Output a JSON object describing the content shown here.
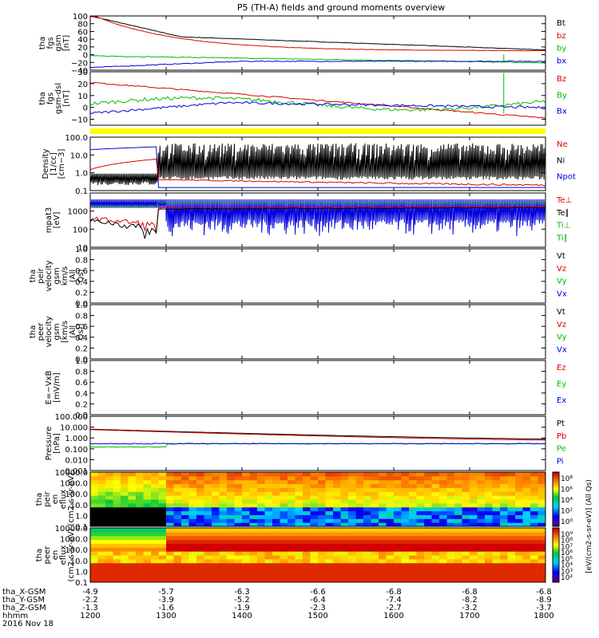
{
  "title": "P5 (TH-A) fields and ground moments overview",
  "colors": {
    "black": "#000000",
    "red": "#dd0000",
    "green": "#00bb00",
    "blue": "#0000dd",
    "yellow": "#ffff00"
  },
  "time_axis": {
    "range": [
      1200,
      1800
    ],
    "hhmm_labels": [
      "1200",
      "1300",
      "1400",
      "1500",
      "1600",
      "1700",
      "1800"
    ],
    "date": "2016 Nov 18",
    "rows": [
      {
        "name": "tha_X-GSM",
        "values": [
          "-4.9",
          "-5.7",
          "-6.3",
          "-6.6",
          "-6.8",
          "-6.8",
          "-6.8"
        ]
      },
      {
        "name": "tha_Y-GSM",
        "values": [
          "-2.2",
          "-3.9",
          "-5.2",
          "-6.4",
          "-7.4",
          "-8.2",
          "-8.9"
        ]
      },
      {
        "name": "tha_Z-GSM",
        "values": [
          "-1.3",
          "-1.6",
          "-1.9",
          "-2.3",
          "-2.7",
          "-3.2",
          "-3.7"
        ]
      },
      {
        "name": "hhmm",
        "values": []
      }
    ]
  },
  "colorbar_label": "[eV/(cm2-s-sr-eV)] (All Qs)",
  "chart_data": [
    {
      "type": "line",
      "id": "fgs_gsm",
      "ylabel": "tha fgs gsm [nT]",
      "ylim": [
        -40,
        100
      ],
      "ticks": [
        "100",
        "80",
        "60",
        "40",
        "20",
        "0",
        "−20",
        "−40"
      ],
      "tick_values": [
        100,
        80,
        60,
        40,
        20,
        0,
        -20,
        -40
      ],
      "legend": [
        {
          "name": "Bt",
          "color": "black"
        },
        {
          "name": "bz",
          "color": "red"
        },
        {
          "name": "by",
          "color": "green"
        },
        {
          "name": "bx",
          "color": "blue"
        }
      ]
    },
    {
      "type": "line",
      "id": "fgs_dsl",
      "ylabel": "tha fgs gsm-dsl [nT]",
      "ylim": [
        -15,
        30
      ],
      "ticks": [
        "30",
        "20",
        "10",
        "0",
        "−10"
      ],
      "tick_values": [
        30,
        20,
        10,
        0,
        -10
      ],
      "legend": [
        {
          "name": "Bz",
          "color": "red"
        },
        {
          "name": "By",
          "color": "green"
        },
        {
          "name": "Bx",
          "color": "blue"
        }
      ]
    },
    {
      "type": "line",
      "id": "density",
      "ylabel": "Density [1/cc] [cm−3]",
      "ylim": [
        0.1,
        100
      ],
      "log": true,
      "ticks": [
        "100.0",
        "10.0",
        "1.0",
        "0.1"
      ],
      "tick_values": [
        100,
        10,
        1,
        0.1
      ],
      "legend": [
        {
          "name": "Ne",
          "color": "red"
        },
        {
          "name": "Ni",
          "color": "black"
        },
        {
          "name": "Npot",
          "color": "blue"
        }
      ]
    },
    {
      "type": "line",
      "id": "temperature",
      "ylabel": "mpat3 [eV]",
      "ylim": [
        10,
        10000
      ],
      "log": true,
      "ticks": [
        "1000",
        "100",
        "10"
      ],
      "tick_values": [
        1000,
        100,
        10
      ],
      "legend": [
        {
          "name": "Te⊥",
          "color": "red"
        },
        {
          "name": "Te∥",
          "color": "black"
        },
        {
          "name": "Ti⊥",
          "color": "green"
        },
        {
          "name": "Ti∥",
          "color": "green"
        }
      ]
    },
    {
      "type": "line",
      "id": "peir_velocity",
      "ylabel": "tha peir velocity gsm km/s (All Qs)",
      "ylim": [
        0,
        1
      ],
      "ticks": [
        "1.0",
        "0.8",
        "0.6",
        "0.4",
        "0.2",
        "0.0"
      ],
      "tick_values": [
        1,
        0.8,
        0.6,
        0.4,
        0.2,
        0
      ],
      "legend": [
        {
          "name": "Vt",
          "color": "black"
        },
        {
          "name": "Vz",
          "color": "red"
        },
        {
          "name": "Vy",
          "color": "green"
        },
        {
          "name": "Vx",
          "color": "blue"
        }
      ]
    },
    {
      "type": "line",
      "id": "peer_velocity",
      "ylabel": "tha peer velocity gsm [km/s (All Qs)]",
      "ylim": [
        0,
        1
      ],
      "ticks": [
        "1.0",
        "0.8",
        "0.6",
        "0.4",
        "0.2",
        "0.0"
      ],
      "tick_values": [
        1,
        0.8,
        0.6,
        0.4,
        0.2,
        0
      ],
      "legend": [
        {
          "name": "Vt",
          "color": "black"
        },
        {
          "name": "Vz",
          "color": "red"
        },
        {
          "name": "Vy",
          "color": "green"
        },
        {
          "name": "Vx",
          "color": "blue"
        }
      ]
    },
    {
      "type": "line",
      "id": "efield",
      "ylabel": "E=−VxB [mV/m]",
      "ylim": [
        0,
        1
      ],
      "ticks": [
        "1.0",
        "0.8",
        "0.6",
        "0.4",
        "0.2",
        "0.0"
      ],
      "tick_values": [
        1,
        0.8,
        0.6,
        0.4,
        0.2,
        0
      ],
      "legend": [
        {
          "name": "Ez",
          "color": "red"
        },
        {
          "name": "Ey",
          "color": "green"
        },
        {
          "name": "Ex",
          "color": "blue"
        }
      ]
    },
    {
      "type": "line",
      "id": "pressure",
      "ylabel": "Pressure [nPa]",
      "ylim": [
        0.001,
        100
      ],
      "log": true,
      "ticks": [
        "100.000",
        "10.000",
        "1.000",
        "0.100",
        "0.010",
        "0.001"
      ],
      "tick_values": [
        100,
        10,
        1,
        0.1,
        0.01,
        0.001
      ],
      "legend": [
        {
          "name": "Pt",
          "color": "black"
        },
        {
          "name": "Pb",
          "color": "red"
        },
        {
          "name": "Pe",
          "color": "green"
        },
        {
          "name": "Pi",
          "color": "blue"
        }
      ]
    },
    {
      "type": "heatmap",
      "id": "peir_spec",
      "ylabel": "tha peir en eflux (cm2-s-sr-eV)",
      "ylim": [
        0.1,
        10000
      ],
      "log": true,
      "ticks": [
        "10000.0",
        "1000.0",
        "100.0",
        "10.0",
        "1.0",
        "0.1"
      ],
      "tick_values": [
        10000,
        1000,
        100,
        10,
        1,
        0.1
      ],
      "colorbar_ticks": [
        "10⁸",
        "10⁶",
        "10⁴",
        "10²",
        "10⁰"
      ]
    },
    {
      "type": "heatmap",
      "id": "peer_spec",
      "ylabel": "tha peer en eflux (cm2-s-sr-eV)",
      "ylim": [
        0.1,
        10000
      ],
      "log": true,
      "ticks": [
        "10000.0",
        "1000.0",
        "100.0",
        "10.0",
        "1.0",
        "0.1"
      ],
      "tick_values": [
        10000,
        1000,
        100,
        10,
        1,
        0.1
      ],
      "colorbar_ticks": [
        "10⁹",
        "10⁸",
        "10⁷",
        "10⁶",
        "10⁵",
        "10⁴",
        "10³",
        "10²"
      ]
    }
  ]
}
